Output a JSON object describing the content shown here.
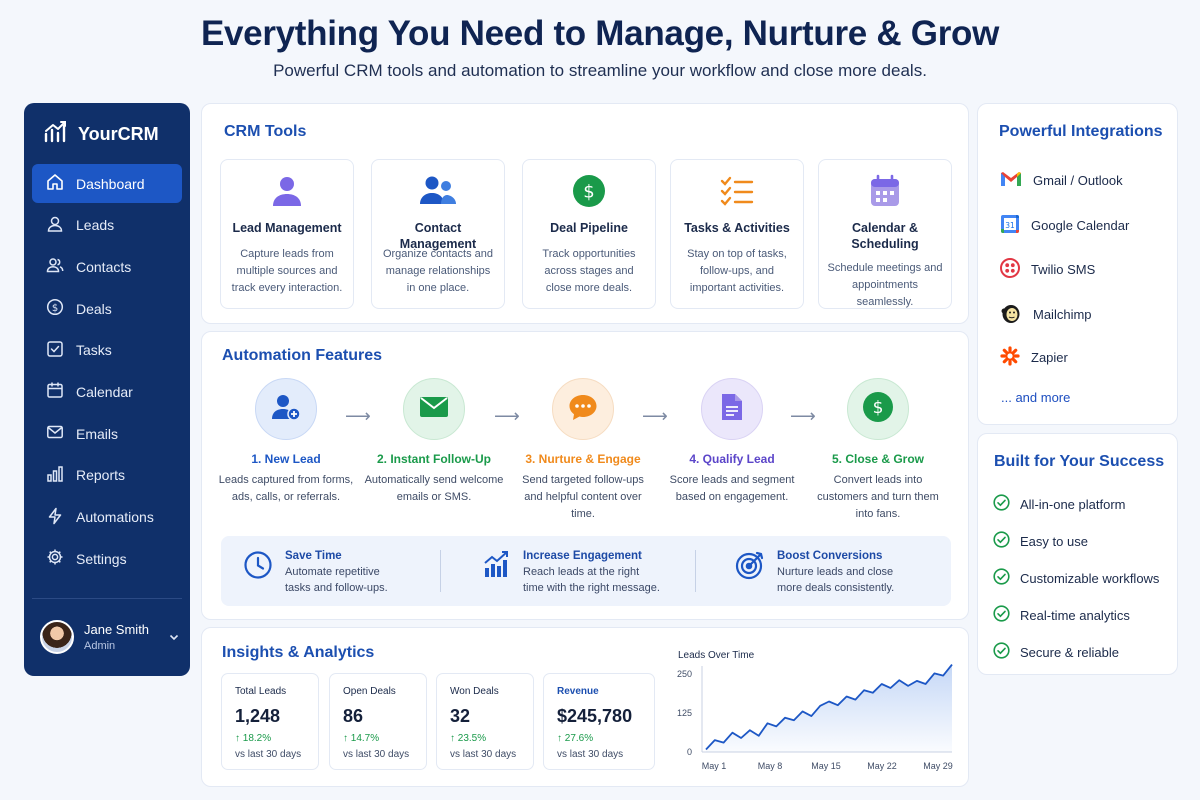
{
  "hero": {
    "title": "Everything You Need to Manage, Nurture & Grow",
    "subtitle": "Powerful CRM tools and automation to streamline your workflow and close more deals."
  },
  "sidebar": {
    "brand": "YourCRM",
    "items": [
      {
        "label": "Dashboard",
        "icon": "home-icon",
        "active": true
      },
      {
        "label": "Leads",
        "icon": "user-icon"
      },
      {
        "label": "Contacts",
        "icon": "users-icon"
      },
      {
        "label": "Deals",
        "icon": "dollar-icon"
      },
      {
        "label": "Tasks",
        "icon": "checkbox-icon"
      },
      {
        "label": "Calendar",
        "icon": "calendar-icon"
      },
      {
        "label": "Emails",
        "icon": "mail-icon"
      },
      {
        "label": "Reports",
        "icon": "bar-chart-icon"
      },
      {
        "label": "Automations",
        "icon": "lightning-icon"
      },
      {
        "label": "Settings",
        "icon": "gear-icon"
      }
    ],
    "user": {
      "name": "Jane Smith",
      "role": "Admin"
    }
  },
  "crm_tools": {
    "title": "CRM Tools",
    "items": [
      {
        "name": "Lead Management",
        "desc": "Capture leads from multiple sources and track every interaction.",
        "icon": "user-icon"
      },
      {
        "name": "Contact Management",
        "desc": "Organize contacts and manage relationships in one place.",
        "icon": "users-icon"
      },
      {
        "name": "Deal Pipeline",
        "desc": "Track opportunities across stages and close more deals.",
        "icon": "dollar-icon"
      },
      {
        "name": "Tasks & Activities",
        "desc": "Stay on top of tasks, follow-ups, and important activities.",
        "icon": "checklist-icon"
      },
      {
        "name": "Calendar & Scheduling",
        "desc": "Schedule meetings and appointments seamlessly.",
        "icon": "calendar-icon"
      }
    ]
  },
  "automation": {
    "title": "Automation Features",
    "steps": [
      {
        "name": "1. New Lead",
        "desc": "Leads captured from forms, ads, calls, or referrals.",
        "color": "#1d57c5",
        "icon": "add-user-icon"
      },
      {
        "name": "2. Instant Follow-Up",
        "desc": "Automatically send welcome emails or SMS.",
        "color": "#1a9a4a",
        "icon": "mail-icon"
      },
      {
        "name": "3. Nurture & Engage",
        "desc": "Send targeted follow-ups and helpful content over time.",
        "color": "#f08a1c",
        "icon": "chat-icon"
      },
      {
        "name": "4. Qualify Lead",
        "desc": "Score leads and segment based on engagement.",
        "color": "#5b45c9",
        "icon": "document-icon"
      },
      {
        "name": "5. Close & Grow",
        "desc": "Convert leads into customers and turn them into fans.",
        "color": "#1a9a4a",
        "icon": "dollar-icon"
      }
    ],
    "benefits": [
      {
        "title": "Save Time",
        "desc": "Automate repetitive tasks and follow-ups.",
        "icon": "clock-icon"
      },
      {
        "title": "Increase Engagement",
        "desc": "Reach leads at the right time with the right message.",
        "icon": "growth-chart-icon"
      },
      {
        "title": "Boost Conversions",
        "desc": "Nurture leads and close more deals consistently.",
        "icon": "target-icon"
      }
    ]
  },
  "insights": {
    "title": "Insights & Analytics",
    "stats": [
      {
        "label": "Total Leads",
        "value": "1,248",
        "change": "↑ 18.2%",
        "period": "vs last 30 days"
      },
      {
        "label": "Open Deals",
        "value": "86",
        "change": "↑ 14.7%",
        "period": "vs last 30 days"
      },
      {
        "label": "Won Deals",
        "value": "32",
        "change": "↑ 23.5%",
        "period": "vs last 30 days"
      },
      {
        "label": "Revenue",
        "value": "$245,780",
        "change": "↑ 27.6%",
        "period": "vs last 30 days"
      }
    ]
  },
  "chart_data": {
    "type": "area",
    "title": "Leads Over Time",
    "xlabel": "",
    "ylabel": "",
    "x_ticks": [
      "May 1",
      "May 8",
      "May 15",
      "May 22",
      "May 29"
    ],
    "y_ticks": [
      0,
      125,
      250
    ],
    "ylim": [
      0,
      250
    ],
    "grid": false,
    "series": [
      {
        "values": [
          8,
          38,
          30,
          62,
          45,
          70,
          52,
          92,
          82,
          110,
          102,
          130,
          115,
          148,
          162,
          150,
          178,
          168,
          198,
          190,
          218,
          205,
          230,
          212,
          228,
          218,
          252,
          245,
          280
        ]
      }
    ]
  },
  "integrations": {
    "title": "Powerful Integrations",
    "items": [
      {
        "label": "Gmail / Outlook",
        "icon": "gmail-icon"
      },
      {
        "label": "Google Calendar",
        "icon": "google-calendar-icon"
      },
      {
        "label": "Twilio SMS",
        "icon": "twilio-icon"
      },
      {
        "label": "Mailchimp",
        "icon": "mailchimp-icon"
      },
      {
        "label": "Zapier",
        "icon": "zapier-icon"
      }
    ],
    "more": "... and more"
  },
  "success": {
    "title": "Built for Your Success",
    "items": [
      "All-in-one platform",
      "Easy to use",
      "Customizable workflows",
      "Real-time analytics",
      "Secure & reliable"
    ]
  },
  "colors": {
    "sidebar": "#10306a",
    "sidebar_active": "#1d57c5",
    "accent": "#1c4fb0",
    "positive": "#1a9a4a"
  }
}
